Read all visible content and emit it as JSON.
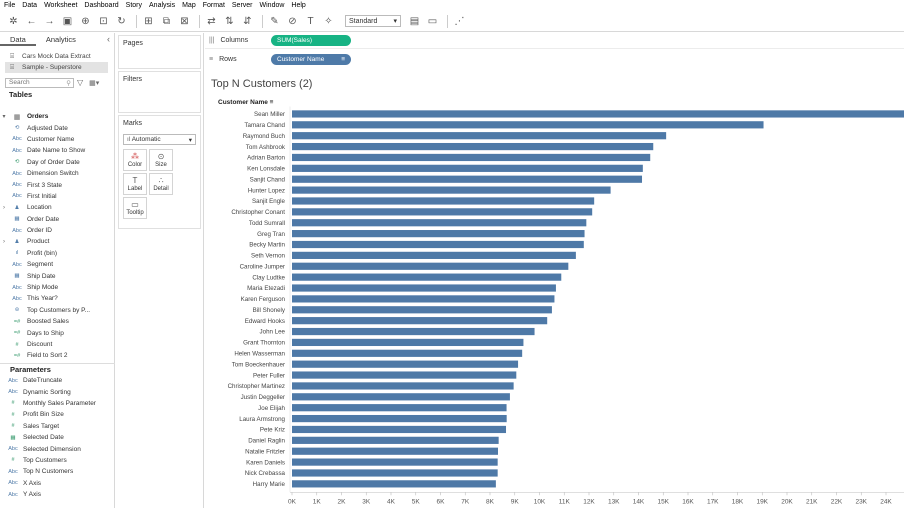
{
  "menu": [
    "File",
    "Data",
    "Worksheet",
    "Dashboard",
    "Story",
    "Analysis",
    "Map",
    "Format",
    "Server",
    "Window",
    "Help"
  ],
  "toolbar": {
    "fit_select": "Standard"
  },
  "left_panel": {
    "tabs": [
      "Data",
      "Analytics"
    ],
    "data_sources": [
      "Cars Mock Data Extract",
      "Sample - Superstore"
    ],
    "tables_title": "Tables",
    "search_placeholder": "Search",
    "fields": [
      {
        "name": "Orders",
        "type": "table",
        "expand": "▾"
      },
      {
        "name": "Adjusted Date",
        "icon": "⟲",
        "color": "blue"
      },
      {
        "name": "Customer Name",
        "icon": "Abc",
        "color": "blue"
      },
      {
        "name": "Date Name to Show",
        "icon": "Abc",
        "color": "blue"
      },
      {
        "name": "Day of Order Date",
        "icon": "⟲",
        "color": "green"
      },
      {
        "name": "Dimension Switch",
        "icon": "Abc",
        "color": "blue"
      },
      {
        "name": "First 3 State",
        "icon": "Abc",
        "color": "blue"
      },
      {
        "name": "First Initial",
        "icon": "Abc",
        "color": "blue"
      },
      {
        "name": "Location",
        "icon": "♟",
        "color": "blue",
        "expand": "›"
      },
      {
        "name": "Order Date",
        "icon": "▦",
        "color": "blue"
      },
      {
        "name": "Order ID",
        "icon": "Abc",
        "color": "blue"
      },
      {
        "name": "Product",
        "icon": "♟",
        "color": "blue",
        "expand": "›"
      },
      {
        "name": "Profit (bin)",
        "icon": "ıl",
        "color": "blue"
      },
      {
        "name": "Segment",
        "icon": "Abc",
        "color": "blue"
      },
      {
        "name": "Ship Date",
        "icon": "▦",
        "color": "blue"
      },
      {
        "name": "Ship Mode",
        "icon": "Abc",
        "color": "blue"
      },
      {
        "name": "This Year?",
        "icon": "Abc",
        "color": "blue"
      },
      {
        "name": "Top Customers by P...",
        "icon": "⊚",
        "color": "blue"
      },
      {
        "name": "Boosted Sales",
        "icon": "=#",
        "color": "green"
      },
      {
        "name": "Days to Ship",
        "icon": "=#",
        "color": "green"
      },
      {
        "name": "Discount",
        "icon": "#",
        "color": "green"
      },
      {
        "name": "Field to Sort 2",
        "icon": "=#",
        "color": "green"
      }
    ],
    "parameters_title": "Parameters",
    "parameters": [
      {
        "name": "DateTruncate",
        "icon": "Abc",
        "color": "blue"
      },
      {
        "name": "Dynamic Sorting",
        "icon": "Abc",
        "color": "blue"
      },
      {
        "name": "Monthly Sales Parameter",
        "icon": "#",
        "color": "green"
      },
      {
        "name": "Profit Bin Size",
        "icon": "#",
        "color": "green"
      },
      {
        "name": "Sales Target",
        "icon": "#",
        "color": "green"
      },
      {
        "name": "Selected Date",
        "icon": "▦",
        "color": "green"
      },
      {
        "name": "Selected Dimension",
        "icon": "Abc",
        "color": "blue"
      },
      {
        "name": "Top Customers",
        "icon": "#",
        "color": "green"
      },
      {
        "name": "Top N Customers",
        "icon": "Abc",
        "color": "blue"
      },
      {
        "name": "X Axis",
        "icon": "Abc",
        "color": "blue"
      },
      {
        "name": "Y Axis",
        "icon": "Abc",
        "color": "blue"
      }
    ]
  },
  "shelves": {
    "pages": "Pages",
    "filters": "Filters",
    "marks": "Marks",
    "mark_type": "Automatic",
    "mark_buttons": [
      {
        "label": "Color",
        "icon": "⁂"
      },
      {
        "label": "Size",
        "icon": "⊙"
      },
      {
        "label": "Label",
        "icon": "T"
      },
      {
        "label": "Detail",
        "icon": "∴"
      },
      {
        "label": "Tooltip",
        "icon": "▭"
      }
    ]
  },
  "columns": {
    "label": "Columns",
    "pill": "SUM(Sales)"
  },
  "rows": {
    "label": "Rows",
    "pill": "Customer Name"
  },
  "view": {
    "title": "Top N Customers (2)",
    "row_header": "Customer Name"
  },
  "chart_data": {
    "type": "bar",
    "orientation": "horizontal",
    "categories": [
      "Sean Miller",
      "Tamara Chand",
      "Raymond Buch",
      "Tom Ashbrook",
      "Adrian Barton",
      "Ken Lonsdale",
      "Sanjit Chand",
      "Hunter Lopez",
      "Sanjit Engle",
      "Christopher Conant",
      "Todd Sumrall",
      "Greg Tran",
      "Becky Martin",
      "Seth Vernon",
      "Caroline Jumper",
      "Clay Ludtke",
      "Maria Etezadi",
      "Karen Ferguson",
      "Bill Shonely",
      "Edward Hooks",
      "John Lee",
      "Grant Thornton",
      "Helen Wasserman",
      "Tom Boeckenhauer",
      "Peter Fuller",
      "Christopher Martinez",
      "Justin Deggeller",
      "Joe Elijah",
      "Laura Armstrong",
      "Pete Kriz",
      "Daniel Raglin",
      "Natalie Fritzler",
      "Karen Daniels",
      "Nick Crebassa",
      "Harry Marie"
    ],
    "values": [
      25043,
      19052,
      15117,
      14596,
      14474,
      14175,
      14142,
      12873,
      12209,
      12129,
      11892,
      11820,
      11790,
      11470,
      11165,
      10880,
      10664,
      10604,
      10502,
      10311,
      9800,
      9351,
      9300,
      9134,
      9063,
      8955,
      8805,
      8669,
      8674,
      8647,
      8350,
      8323,
      8310,
      8310,
      8237
    ],
    "x_ticks": [
      "0K",
      "1K",
      "2K",
      "3K",
      "4K",
      "5K",
      "6K",
      "7K",
      "8K",
      "9K",
      "10K",
      "11K",
      "12K",
      "13K",
      "14K",
      "15K",
      "16K",
      "17K",
      "18K",
      "19K",
      "20K",
      "21K",
      "22K",
      "23K",
      "24K"
    ],
    "xlim": [
      0,
      24500
    ],
    "bar_color": "#4e79a7",
    "grid": false
  }
}
